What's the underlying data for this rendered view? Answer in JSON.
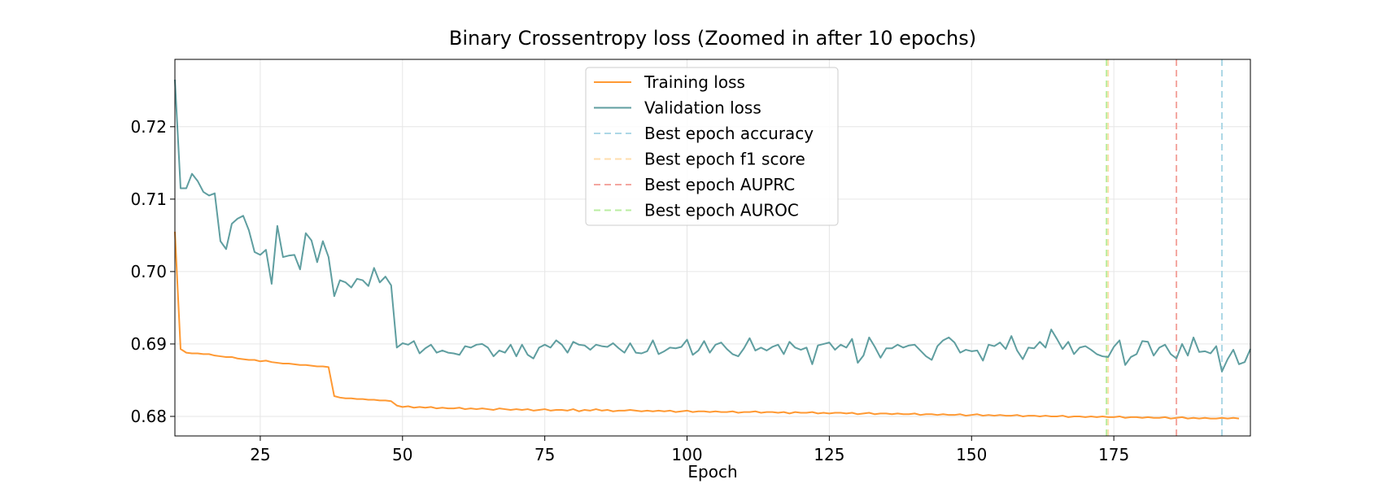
{
  "chart_data": {
    "type": "line",
    "title": "Binary Crossentropy loss (Zoomed in after 10 epochs)",
    "xlabel": "Epoch",
    "ylabel": "",
    "xlim": [
      10,
      199
    ],
    "ylim": [
      0.6773,
      0.7293
    ],
    "xticks": [
      25,
      50,
      75,
      100,
      125,
      150,
      175
    ],
    "yticks": [
      0.68,
      0.69,
      0.7,
      0.71,
      0.72
    ],
    "ytick_labels": [
      "0.68",
      "0.69",
      "0.70",
      "0.71",
      "0.72"
    ],
    "grid": true,
    "legend_position": "top-center",
    "x_start": 10,
    "series": [
      {
        "name": "Training loss",
        "color": "#ff9933",
        "style": "solid",
        "values": [
          0.7055,
          0.6893,
          0.6888,
          0.6887,
          0.6887,
          0.6886,
          0.6886,
          0.6884,
          0.6883,
          0.6882,
          0.6882,
          0.688,
          0.6879,
          0.6878,
          0.6878,
          0.6876,
          0.6877,
          0.6875,
          0.6874,
          0.6873,
          0.6873,
          0.6872,
          0.6871,
          0.6871,
          0.687,
          0.6869,
          0.6869,
          0.6868,
          0.6828,
          0.6826,
          0.6825,
          0.6825,
          0.6824,
          0.6824,
          0.6823,
          0.6823,
          0.6822,
          0.6822,
          0.6821,
          0.6815,
          0.6813,
          0.6814,
          0.6812,
          0.6813,
          0.6812,
          0.6813,
          0.6811,
          0.6812,
          0.6811,
          0.6811,
          0.6812,
          0.681,
          0.6811,
          0.681,
          0.6811,
          0.681,
          0.6809,
          0.6811,
          0.681,
          0.6809,
          0.681,
          0.6809,
          0.681,
          0.6808,
          0.6809,
          0.681,
          0.6808,
          0.6809,
          0.6809,
          0.6808,
          0.681,
          0.6807,
          0.6809,
          0.6808,
          0.681,
          0.6808,
          0.6809,
          0.6807,
          0.6808,
          0.6808,
          0.6809,
          0.6808,
          0.6807,
          0.6808,
          0.6807,
          0.6808,
          0.6807,
          0.6808,
          0.6806,
          0.6807,
          0.6808,
          0.6806,
          0.6807,
          0.6807,
          0.6806,
          0.6807,
          0.6806,
          0.6806,
          0.6807,
          0.6805,
          0.6806,
          0.6806,
          0.6807,
          0.6805,
          0.6806,
          0.6806,
          0.6805,
          0.6806,
          0.6804,
          0.6806,
          0.6805,
          0.6805,
          0.6806,
          0.6804,
          0.6805,
          0.6804,
          0.6805,
          0.6805,
          0.6804,
          0.6805,
          0.6803,
          0.6804,
          0.6805,
          0.6803,
          0.6804,
          0.6804,
          0.6803,
          0.6804,
          0.6803,
          0.6803,
          0.6804,
          0.6802,
          0.6803,
          0.6803,
          0.6802,
          0.6803,
          0.6802,
          0.6802,
          0.6803,
          0.6801,
          0.6802,
          0.6803,
          0.6801,
          0.6802,
          0.6801,
          0.6802,
          0.6801,
          0.6801,
          0.6802,
          0.68,
          0.6801,
          0.6801,
          0.68,
          0.6801,
          0.68,
          0.68,
          0.6801,
          0.6799,
          0.68,
          0.68,
          0.6799,
          0.68,
          0.6799,
          0.68,
          0.6799,
          0.6799,
          0.68,
          0.6798,
          0.6799,
          0.6799,
          0.6798,
          0.6799,
          0.6798,
          0.6798,
          0.6799,
          0.6797,
          0.6798,
          0.6799,
          0.6797,
          0.6798,
          0.6797,
          0.6798,
          0.6797,
          0.6797,
          0.6798,
          0.6797,
          0.6798,
          0.6797
        ]
      },
      {
        "name": "Validation loss",
        "color": "#5f9ea0",
        "style": "solid",
        "values": [
          0.7265,
          0.7115,
          0.7115,
          0.7135,
          0.7125,
          0.711,
          0.7105,
          0.7108,
          0.7042,
          0.7031,
          0.7066,
          0.7073,
          0.7077,
          0.7057,
          0.7027,
          0.7023,
          0.703,
          0.6983,
          0.7063,
          0.702,
          0.7022,
          0.7023,
          0.7003,
          0.7053,
          0.7043,
          0.7013,
          0.7042,
          0.702,
          0.6966,
          0.6988,
          0.6985,
          0.6978,
          0.699,
          0.6988,
          0.698,
          0.7005,
          0.6985,
          0.6993,
          0.6981,
          0.6895,
          0.6901,
          0.6899,
          0.6904,
          0.6887,
          0.6894,
          0.6899,
          0.6888,
          0.6891,
          0.6888,
          0.6887,
          0.6885,
          0.6897,
          0.6895,
          0.6899,
          0.69,
          0.6895,
          0.6883,
          0.6891,
          0.6888,
          0.6899,
          0.6883,
          0.6899,
          0.6885,
          0.688,
          0.6895,
          0.6899,
          0.6895,
          0.6905,
          0.6899,
          0.6888,
          0.6903,
          0.6899,
          0.6898,
          0.6892,
          0.6899,
          0.6897,
          0.6896,
          0.6901,
          0.6894,
          0.6888,
          0.6901,
          0.6888,
          0.6887,
          0.689,
          0.6905,
          0.6886,
          0.689,
          0.6895,
          0.6894,
          0.6896,
          0.6906,
          0.6885,
          0.6891,
          0.6904,
          0.6888,
          0.6899,
          0.6902,
          0.6893,
          0.6886,
          0.6883,
          0.6894,
          0.6908,
          0.6891,
          0.6895,
          0.6891,
          0.6896,
          0.6899,
          0.6886,
          0.6903,
          0.6895,
          0.6892,
          0.6895,
          0.6872,
          0.6898,
          0.69,
          0.6902,
          0.6892,
          0.6899,
          0.6895,
          0.6907,
          0.6874,
          0.6884,
          0.6909,
          0.6896,
          0.6881,
          0.6894,
          0.6894,
          0.6899,
          0.6895,
          0.6898,
          0.6899,
          0.6891,
          0.6883,
          0.6878,
          0.6897,
          0.6905,
          0.6909,
          0.6902,
          0.6888,
          0.6892,
          0.689,
          0.6891,
          0.6877,
          0.6899,
          0.6897,
          0.6902,
          0.6893,
          0.6911,
          0.6891,
          0.6879,
          0.6895,
          0.6894,
          0.6903,
          0.6895,
          0.692,
          0.6907,
          0.6893,
          0.6903,
          0.6886,
          0.6895,
          0.6897,
          0.6892,
          0.6886,
          0.6883,
          0.6882,
          0.6896,
          0.6905,
          0.6871,
          0.6882,
          0.6886,
          0.6904,
          0.6903,
          0.6884,
          0.6895,
          0.6899,
          0.6886,
          0.688,
          0.69,
          0.6884,
          0.6909,
          0.6889,
          0.689,
          0.6887,
          0.6897,
          0.6862,
          0.6879,
          0.6892,
          0.6872,
          0.6875,
          0.6893
        ]
      }
    ],
    "vlines": [
      {
        "name": "Best epoch accuracy",
        "x": 194,
        "color": "#add8e6"
      },
      {
        "name": "Best epoch f1 score",
        "x": 174,
        "color": "#ffdead"
      },
      {
        "name": "Best epoch AUPRC",
        "x": 186,
        "color": "#f4a6a0"
      },
      {
        "name": "Best epoch AUROC",
        "x": 174,
        "color": "#b9eea0"
      }
    ]
  }
}
